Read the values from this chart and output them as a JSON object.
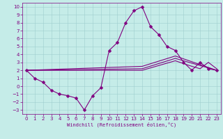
{
  "xlabel": "Windchill (Refroidissement éolien,°C)",
  "bg_color": "#c5ece8",
  "line_color": "#800080",
  "grid_color": "#9ecece",
  "xlim": [
    -0.5,
    23.5
  ],
  "ylim": [
    -3.5,
    10.5
  ],
  "xticks": [
    0,
    1,
    2,
    3,
    4,
    5,
    6,
    7,
    8,
    9,
    10,
    11,
    12,
    13,
    14,
    15,
    16,
    17,
    18,
    19,
    20,
    21,
    22,
    23
  ],
  "yticks": [
    -3,
    -2,
    -1,
    0,
    1,
    2,
    3,
    4,
    5,
    6,
    7,
    8,
    9,
    10
  ],
  "series_with_markers": [
    {
      "x": [
        0,
        1,
        2,
        3,
        4,
        5,
        6,
        7,
        8,
        9,
        10,
        11,
        12,
        13,
        14,
        15,
        16,
        17,
        18,
        19,
        20,
        21,
        22,
        23
      ],
      "y": [
        2,
        1,
        0.5,
        -0.5,
        -1.0,
        -1.2,
        -1.5,
        -3.0,
        -1.2,
        -0.2,
        4.5,
        5.5,
        8.0,
        9.5,
        10.0,
        7.5,
        6.5,
        5.0,
        4.5,
        3.0,
        2.0,
        3.0,
        2.2,
        2.0
      ]
    }
  ],
  "series_lines": [
    {
      "x": [
        0,
        14,
        18,
        23
      ],
      "y": [
        2,
        2.5,
        3.8,
        2.0
      ]
    },
    {
      "x": [
        0,
        14,
        18,
        23
      ],
      "y": [
        2,
        2.2,
        3.5,
        2.0
      ]
    },
    {
      "x": [
        0,
        14,
        18,
        20,
        21,
        22,
        23
      ],
      "y": [
        2,
        2.0,
        3.2,
        2.5,
        2.2,
        3.0,
        2.2
      ]
    }
  ],
  "markersize": 2.5,
  "linewidth": 0.8,
  "tick_fontsize": 5,
  "xlabel_fontsize": 5
}
